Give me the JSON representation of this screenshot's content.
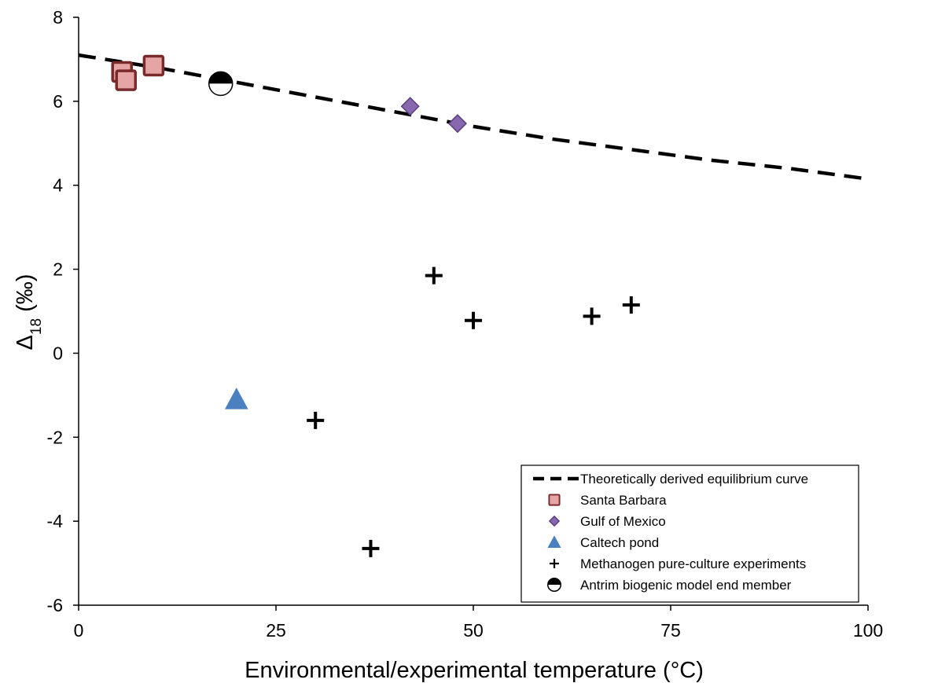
{
  "chart_data": {
    "type": "scatter",
    "title": "",
    "xlabel": "Environmental/experimental temperature (°C)",
    "ylabel_main": "Δ",
    "ylabel_sub": "18",
    "ylabel_unit": " (‰)",
    "xlim": [
      0,
      100
    ],
    "ylim": [
      -6,
      8
    ],
    "xticks": [
      "0",
      "25",
      "50",
      "75",
      "100"
    ],
    "yticks": [
      "8",
      "6",
      "4",
      "2",
      "0",
      "-2",
      "-4",
      "-6"
    ],
    "xtick_values": [
      0,
      25,
      50,
      75,
      100
    ],
    "ytick_values": [
      8,
      6,
      4,
      2,
      0,
      -2,
      -4,
      -6
    ],
    "grid": false,
    "legend_position": "bottom-right",
    "series": [
      {
        "name": "Theoretically derived equilibrium curve",
        "kind": "line",
        "style": "dashed",
        "color": "#000000",
        "x": [
          0,
          5,
          10,
          20,
          30,
          40,
          50,
          60,
          70,
          80,
          90,
          100
        ],
        "y": [
          7.1,
          6.95,
          6.8,
          6.45,
          6.1,
          5.75,
          5.4,
          5.1,
          4.85,
          4.6,
          4.4,
          4.15
        ]
      },
      {
        "name": "Santa Barbara",
        "kind": "marker",
        "marker": "square",
        "fill": "#e6a5a5",
        "stroke": "#7a2a2a",
        "x": [
          5.5,
          6,
          9.5
        ],
        "y": [
          6.7,
          6.5,
          6.85
        ]
      },
      {
        "name": "Gulf of Mexico",
        "kind": "marker",
        "marker": "diamond",
        "fill": "#8a68b0",
        "stroke": "#5a3f80",
        "x": [
          42,
          48
        ],
        "y": [
          5.88,
          5.47
        ]
      },
      {
        "name": "Caltech pond",
        "kind": "marker",
        "marker": "triangle",
        "fill": "#4a7fc0",
        "stroke": "#4a7fc0",
        "x": [
          20
        ],
        "y": [
          -1.1
        ]
      },
      {
        "name": "Methanogen pure-culture experiments",
        "kind": "marker",
        "marker": "plus",
        "fill": "#000000",
        "stroke": "#000000",
        "x": [
          30,
          37,
          45,
          50,
          65,
          70
        ],
        "y": [
          -1.6,
          -4.65,
          1.85,
          0.78,
          0.88,
          1.15
        ]
      },
      {
        "name": "Antrim biogenic model end member",
        "kind": "marker",
        "marker": "half-circle",
        "fill": "#000000",
        "stroke": "#000000",
        "x": [
          18
        ],
        "y": [
          6.42
        ]
      }
    ]
  }
}
